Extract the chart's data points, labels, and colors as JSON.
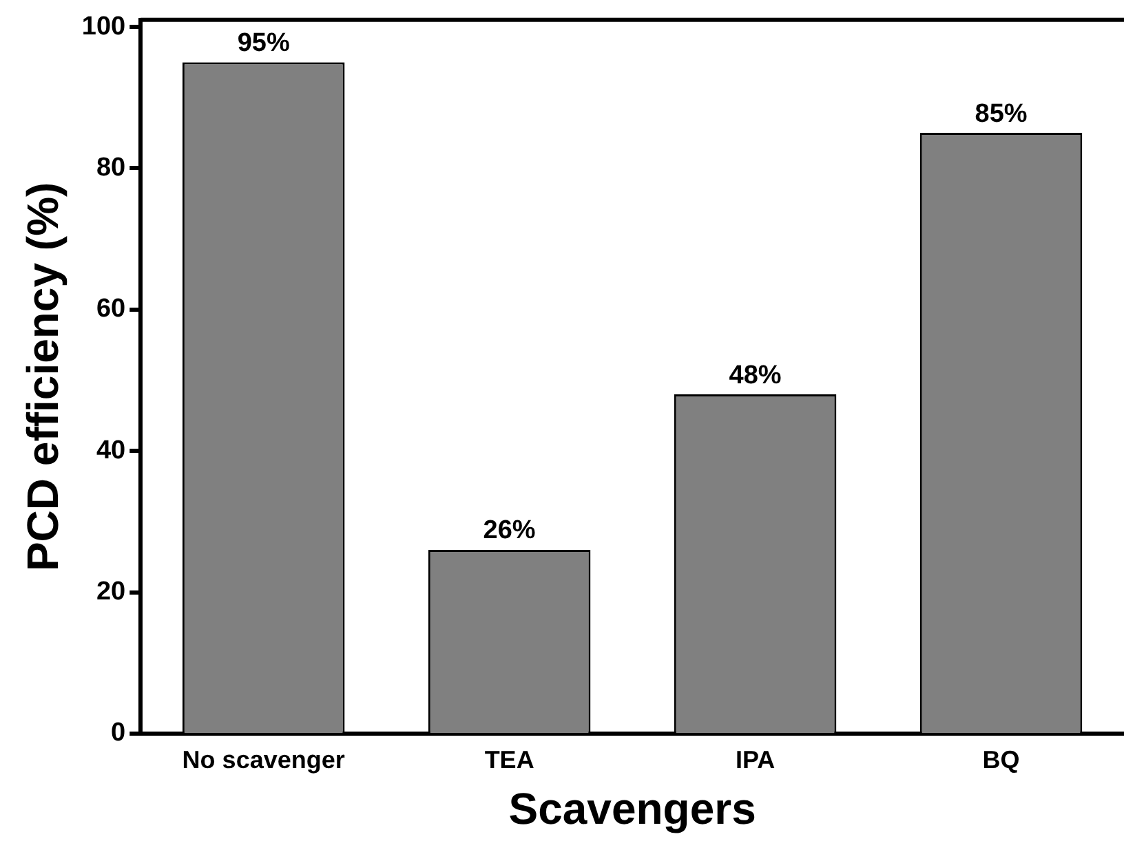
{
  "chart_data": {
    "type": "bar",
    "xlabel": "Scavengers",
    "ylabel": "PCD efficiency (%)",
    "categories": [
      "No scavenger",
      "TEA",
      "IPA",
      "BQ"
    ],
    "values": [
      95,
      26,
      48,
      85
    ],
    "color": "#808080",
    "value_labels": [
      "95%",
      "26%",
      "48%",
      "85%"
    ],
    "ylim": [
      0,
      101
    ],
    "yticks": [
      0,
      20,
      40,
      60,
      80,
      100
    ],
    "grid": false,
    "legend": false
  }
}
